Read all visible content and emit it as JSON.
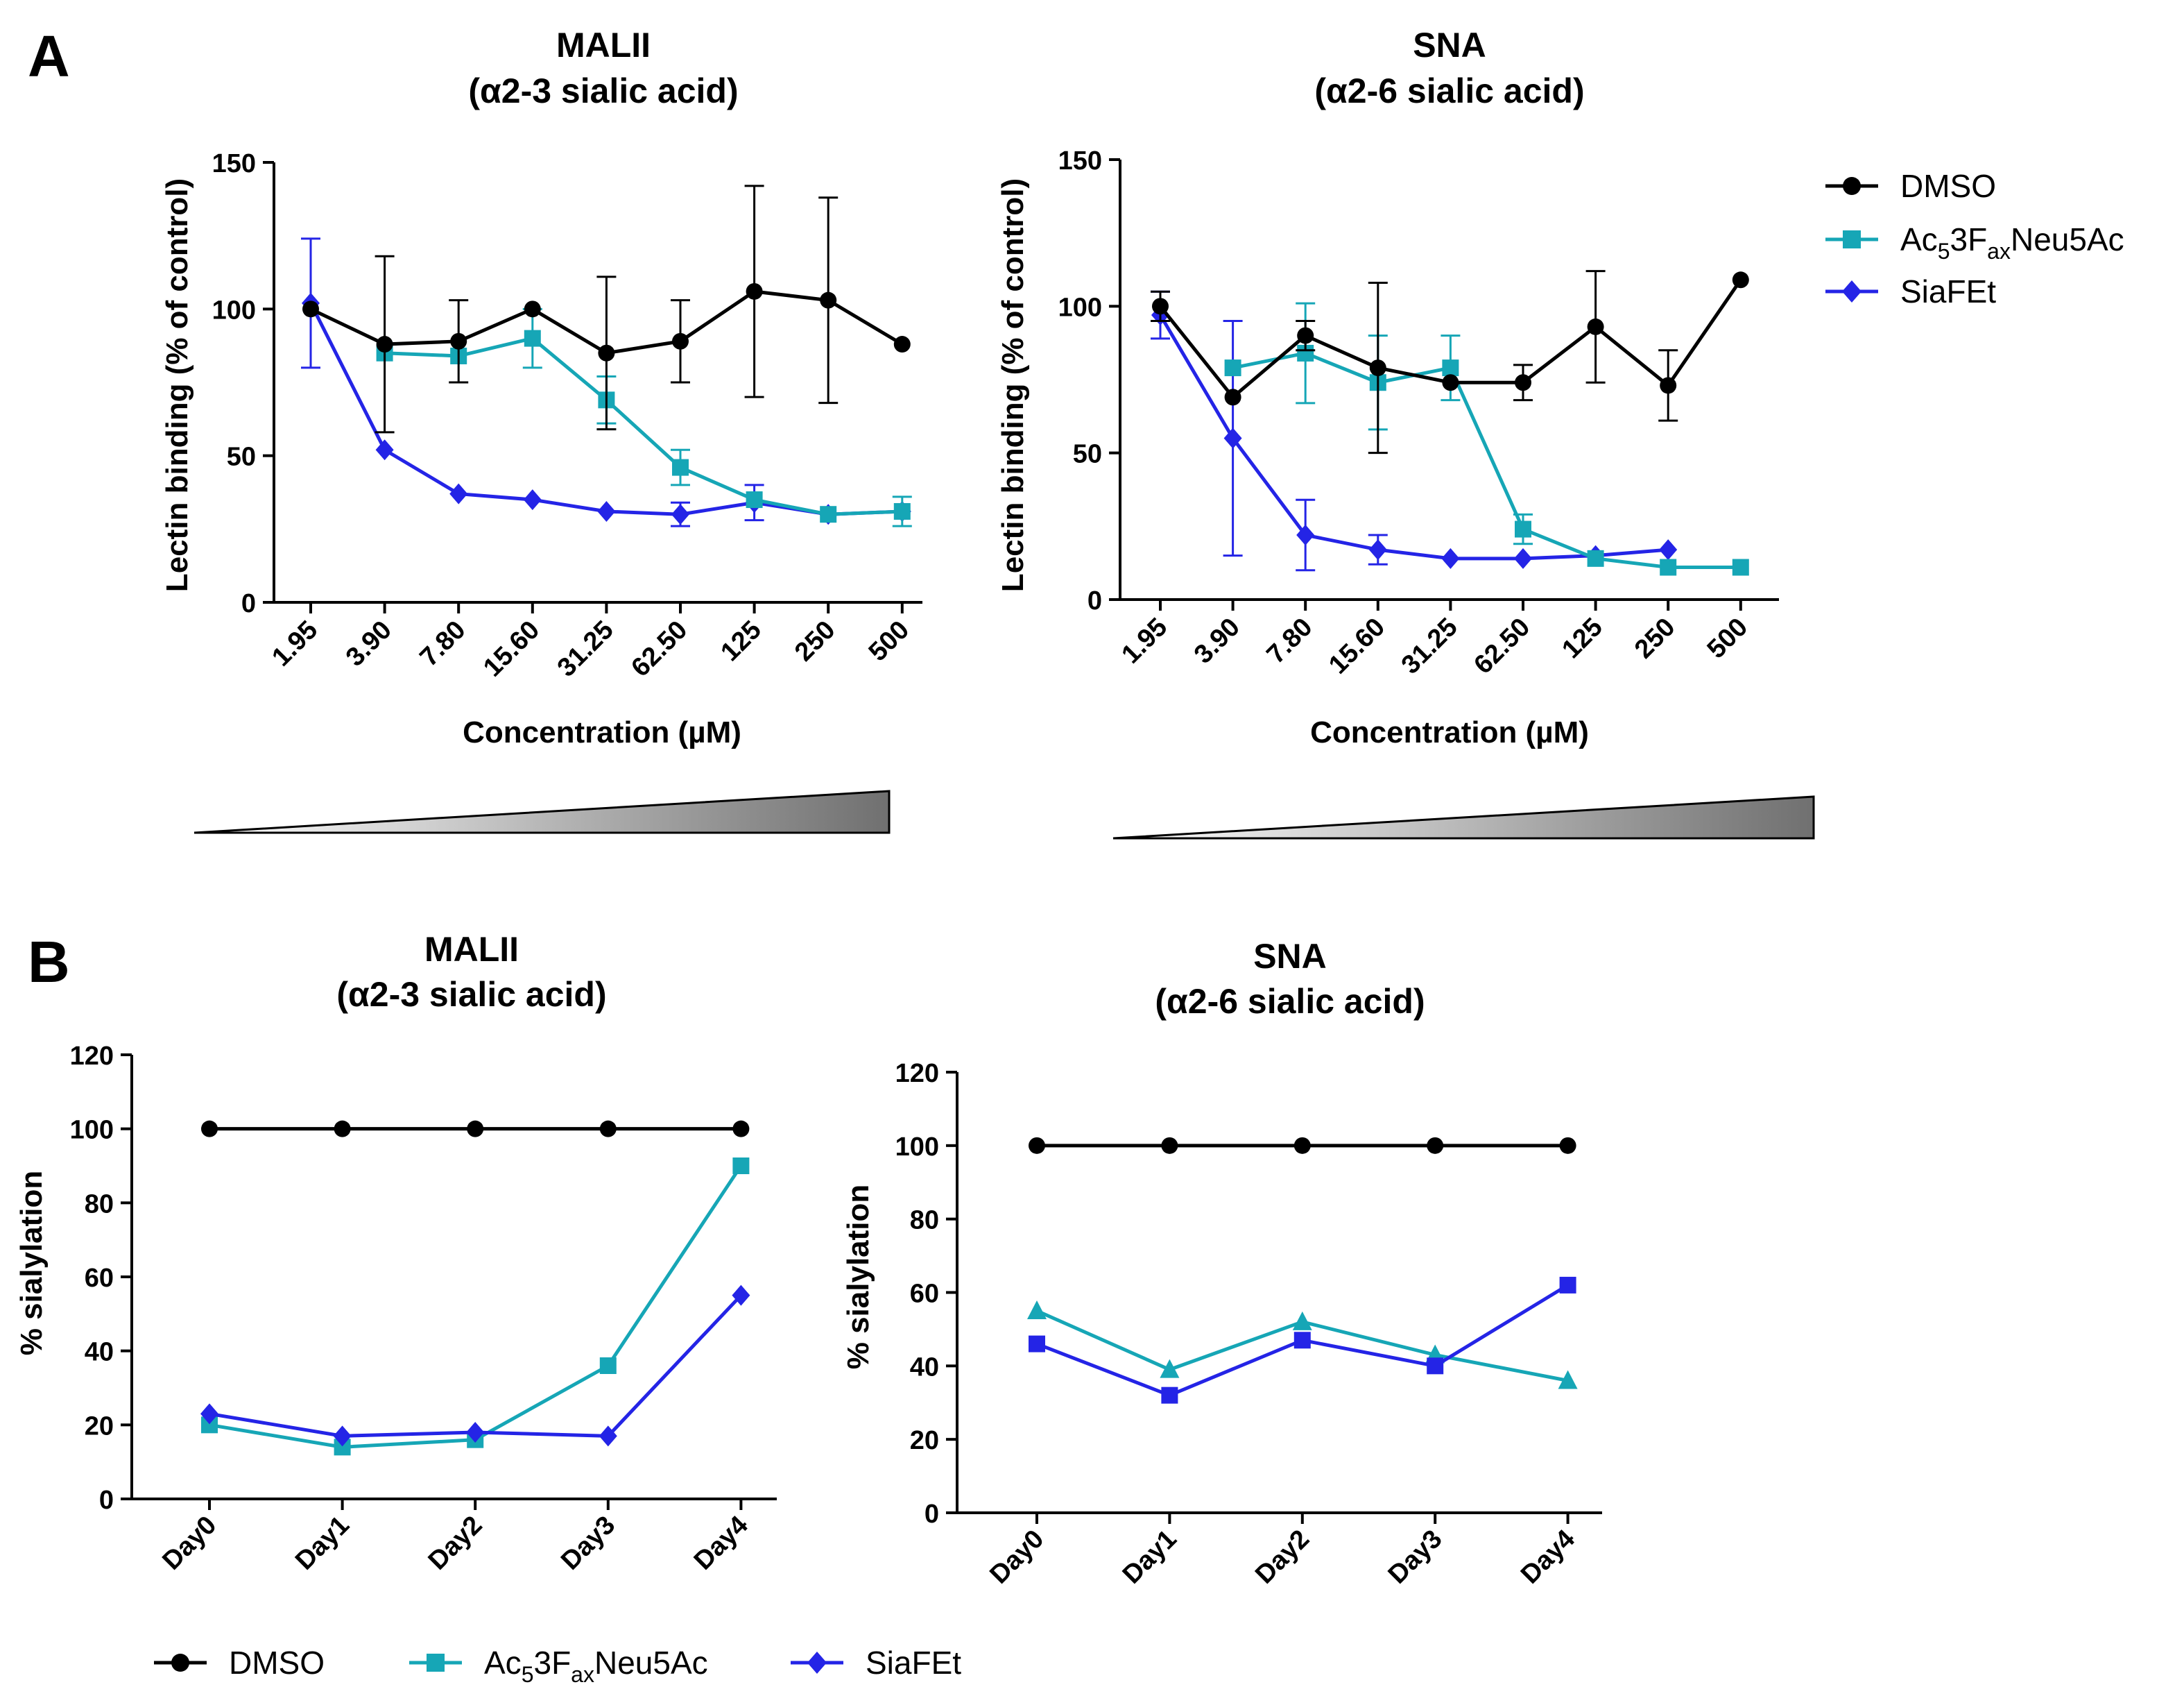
{
  "panel_labels": {
    "a": "A",
    "b": "B"
  },
  "legend": {
    "dmso": "DMSO",
    "ac_prefix": "Ac",
    "ac_sub1": "5",
    "ac_mid": "3F",
    "ac_sub2": "ax",
    "ac_suffix": "Neu5Ac",
    "siafet": "SiaFEt"
  },
  "colors": {
    "dmso": "#000000",
    "ac": "#16a6b6",
    "siafet": "#2424e6"
  },
  "chart_data": [
    {
      "id": "A1",
      "type": "line",
      "title": "MALII",
      "subtitle": "(α2-3 sialic acid)",
      "xlabel": "Concentration (µM)",
      "ylabel": "Lectin binding (% of control)",
      "categories": [
        "1.95",
        "3.90",
        "7.80",
        "15.60",
        "31.25",
        "62.50",
        "125",
        "250",
        "500"
      ],
      "ylim": [
        0,
        150
      ],
      "yticks": [
        "0",
        "50",
        "100",
        "150"
      ],
      "series": [
        {
          "name": "DMSO",
          "marker": "circle",
          "values": [
            100,
            88,
            89,
            100,
            85,
            89,
            106,
            103,
            88
          ],
          "errors": [
            0,
            30,
            14,
            0,
            26,
            14,
            36,
            35,
            0
          ]
        },
        {
          "name": "Ac53FaxNeu5Ac",
          "marker": "square",
          "values": [
            null,
            85,
            84,
            90,
            69,
            46,
            35,
            30,
            31
          ],
          "errors": [
            0,
            0,
            0,
            10,
            8,
            6,
            0,
            0,
            5
          ]
        },
        {
          "name": "SiaFEt",
          "marker": "diamond",
          "values": [
            102,
            52,
            37,
            35,
            31,
            30,
            34,
            30,
            31
          ],
          "errors": [
            22,
            0,
            0,
            0,
            0,
            4,
            6,
            0,
            0
          ]
        }
      ]
    },
    {
      "id": "A2",
      "type": "line",
      "title": "SNA",
      "subtitle": "(α2-6 sialic acid)",
      "xlabel": "Concentration (µM)",
      "ylabel": "Lectin binding (% of control)",
      "categories": [
        "1.95",
        "3.90",
        "7.80",
        "15.60",
        "31.25",
        "62.50",
        "125",
        "250",
        "500"
      ],
      "ylim": [
        0,
        150
      ],
      "yticks": [
        "0",
        "50",
        "100",
        "150"
      ],
      "series": [
        {
          "name": "DMSO",
          "marker": "circle",
          "values": [
            100,
            69,
            90,
            79,
            74,
            74,
            93,
            73,
            109
          ],
          "errors": [
            5,
            0,
            5,
            29,
            0,
            6,
            19,
            12,
            0
          ]
        },
        {
          "name": "Ac53FaxNeu5Ac",
          "marker": "square",
          "values": [
            null,
            79,
            84,
            74,
            79,
            24,
            14,
            11,
            11
          ],
          "errors": [
            0,
            0,
            17,
            16,
            11,
            5,
            0,
            0,
            0
          ]
        },
        {
          "name": "SiaFEt",
          "marker": "diamond",
          "values": [
            97,
            55,
            22,
            17,
            14,
            14,
            15,
            17,
            null
          ],
          "errors": [
            8,
            40,
            12,
            5,
            0,
            0,
            0,
            0,
            0
          ]
        }
      ]
    },
    {
      "id": "B1",
      "type": "line",
      "title": "MALII",
      "subtitle": "(α2-3 sialic acid)",
      "xlabel": "",
      "ylabel": "% sialylation",
      "categories": [
        "Day0",
        "Day1",
        "Day2",
        "Day3",
        "Day4"
      ],
      "ylim": [
        0,
        120
      ],
      "yticks": [
        "0",
        "20",
        "40",
        "60",
        "80",
        "100",
        "120"
      ],
      "series": [
        {
          "name": "DMSO",
          "marker": "circle",
          "values": [
            100,
            100,
            100,
            100,
            100
          ]
        },
        {
          "name": "Ac53FaxNeu5Ac",
          "marker": "square",
          "values": [
            20,
            14,
            16,
            36,
            90
          ]
        },
        {
          "name": "SiaFEt",
          "marker": "diamond",
          "values": [
            23,
            17,
            18,
            17,
            55
          ]
        }
      ]
    },
    {
      "id": "B2",
      "type": "line",
      "title": "SNA",
      "subtitle": "(α2-6 sialic acid)",
      "xlabel": "",
      "ylabel": "% sialylation",
      "categories": [
        "Day0",
        "Day1",
        "Day2",
        "Day3",
        "Day4"
      ],
      "ylim": [
        0,
        120
      ],
      "yticks": [
        "0",
        "20",
        "40",
        "60",
        "80",
        "100",
        "120"
      ],
      "series": [
        {
          "name": "DMSO",
          "marker": "circle",
          "values": [
            100,
            100,
            100,
            100,
            100
          ]
        },
        {
          "name": "Ac53FaxNeu5Ac",
          "marker": "triangle",
          "values": [
            55,
            39,
            52,
            43,
            36
          ]
        },
        {
          "name": "SiaFEt",
          "marker": "square",
          "values": [
            46,
            32,
            47,
            40,
            62
          ]
        }
      ]
    }
  ]
}
